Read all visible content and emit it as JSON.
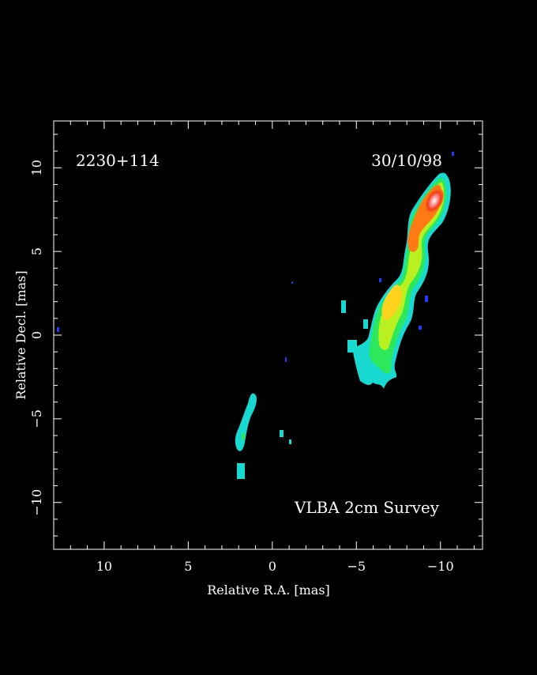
{
  "source_label": "2230+114",
  "date_label": "30/10/98",
  "survey_label": "VLBA 2cm Survey",
  "axes": {
    "x_label": "Relative R.A. [mas]",
    "y_label": "Relative Decl. [mas]",
    "x_range": [
      13,
      -12.5
    ],
    "y_range": [
      -12.8,
      12.8
    ],
    "x_ticks": [
      "10",
      "5",
      "0",
      "−5",
      "−10"
    ],
    "y_ticks": [
      "10",
      "5",
      "0",
      "−5",
      "−10"
    ]
  },
  "colors": {
    "background": "#000000",
    "frame": "#ffffff",
    "colormap": [
      "#1e3cff",
      "#17d9d0",
      "#2de85a",
      "#b8f020",
      "#ffd21e",
      "#ff7a12",
      "#f03c1e",
      "#ffffff"
    ]
  }
}
